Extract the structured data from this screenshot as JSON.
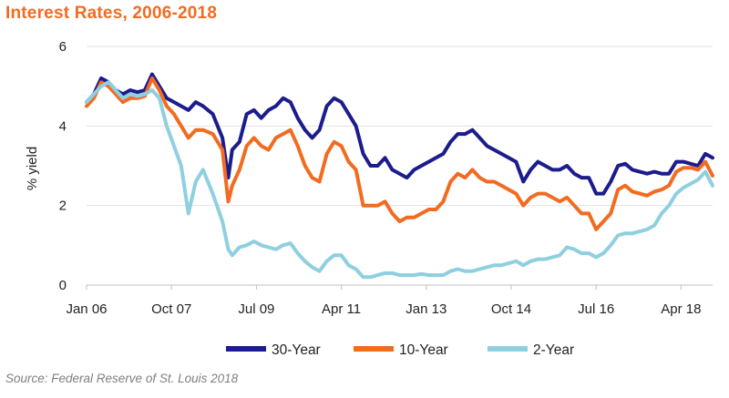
{
  "title": "Interest Rates, 2006-2018",
  "source": "Source: Federal Reserve of St. Louis 2018",
  "chart_data": {
    "type": "line",
    "title": "Interest Rates, 2006-2018",
    "xlabel": "",
    "ylabel": "% yield",
    "ylim": [
      0,
      6
    ],
    "yticks": [
      0,
      2,
      4,
      6
    ],
    "xlim": [
      2006.0,
      2018.9
    ],
    "xticks": [
      {
        "label": "Jan 06",
        "x": 2006.0
      },
      {
        "label": "Oct 07",
        "x": 2007.75
      },
      {
        "label": "Jul 09",
        "x": 2009.5
      },
      {
        "label": "Apr 11",
        "x": 2011.25
      },
      {
        "label": "Jan 13",
        "x": 2013.0
      },
      {
        "label": "Oct 14",
        "x": 2014.75
      },
      {
        "label": "Jul 16",
        "x": 2016.5
      },
      {
        "label": "Apr 18",
        "x": 2018.25
      }
    ],
    "series": [
      {
        "name": "30-Year",
        "color": "#1c1c8c",
        "x": [
          2006.0,
          2006.15,
          2006.3,
          2006.45,
          2006.6,
          2006.75,
          2006.9,
          2007.05,
          2007.2,
          2007.35,
          2007.5,
          2007.65,
          2007.8,
          2007.95,
          2008.1,
          2008.25,
          2008.4,
          2008.6,
          2008.8,
          2008.92,
          2009.0,
          2009.15,
          2009.3,
          2009.45,
          2009.6,
          2009.75,
          2009.9,
          2010.05,
          2010.2,
          2010.35,
          2010.5,
          2010.65,
          2010.8,
          2010.95,
          2011.1,
          2011.25,
          2011.4,
          2011.55,
          2011.7,
          2011.85,
          2012.0,
          2012.15,
          2012.3,
          2012.45,
          2012.6,
          2012.75,
          2012.9,
          2013.05,
          2013.2,
          2013.35,
          2013.5,
          2013.65,
          2013.8,
          2013.95,
          2014.1,
          2014.25,
          2014.4,
          2014.55,
          2014.7,
          2014.85,
          2015.0,
          2015.15,
          2015.3,
          2015.45,
          2015.6,
          2015.75,
          2015.9,
          2016.05,
          2016.2,
          2016.35,
          2016.5,
          2016.65,
          2016.8,
          2016.95,
          2017.1,
          2017.25,
          2017.4,
          2017.55,
          2017.7,
          2017.85,
          2018.0,
          2018.15,
          2018.3,
          2018.45,
          2018.6,
          2018.75,
          2018.9
        ],
        "values": [
          4.6,
          4.8,
          5.2,
          5.1,
          4.9,
          4.8,
          4.9,
          4.85,
          4.9,
          5.3,
          5.0,
          4.7,
          4.6,
          4.5,
          4.4,
          4.6,
          4.5,
          4.3,
          3.7,
          2.7,
          3.4,
          3.6,
          4.3,
          4.4,
          4.2,
          4.4,
          4.5,
          4.7,
          4.6,
          4.2,
          3.9,
          3.7,
          3.9,
          4.5,
          4.7,
          4.6,
          4.3,
          4.0,
          3.3,
          3.0,
          3.0,
          3.2,
          2.9,
          2.8,
          2.7,
          2.9,
          3.0,
          3.1,
          3.2,
          3.3,
          3.6,
          3.8,
          3.8,
          3.9,
          3.7,
          3.5,
          3.4,
          3.3,
          3.2,
          3.1,
          2.6,
          2.9,
          3.1,
          3.0,
          2.9,
          2.9,
          3.0,
          2.8,
          2.7,
          2.7,
          2.3,
          2.3,
          2.6,
          3.0,
          3.05,
          2.9,
          2.85,
          2.8,
          2.85,
          2.8,
          2.8,
          3.1,
          3.1,
          3.05,
          3.0,
          3.3,
          3.2
        ]
      },
      {
        "name": "10-Year",
        "color": "#f26b21",
        "x": [
          2006.0,
          2006.15,
          2006.3,
          2006.45,
          2006.6,
          2006.75,
          2006.9,
          2007.05,
          2007.2,
          2007.35,
          2007.5,
          2007.65,
          2007.8,
          2007.95,
          2008.1,
          2008.25,
          2008.4,
          2008.6,
          2008.8,
          2008.92,
          2009.0,
          2009.15,
          2009.3,
          2009.45,
          2009.6,
          2009.75,
          2009.9,
          2010.05,
          2010.2,
          2010.35,
          2010.5,
          2010.65,
          2010.8,
          2010.95,
          2011.1,
          2011.25,
          2011.4,
          2011.55,
          2011.7,
          2011.85,
          2012.0,
          2012.15,
          2012.3,
          2012.45,
          2012.6,
          2012.75,
          2012.9,
          2013.05,
          2013.2,
          2013.35,
          2013.5,
          2013.65,
          2013.8,
          2013.95,
          2014.1,
          2014.25,
          2014.4,
          2014.55,
          2014.7,
          2014.85,
          2015.0,
          2015.15,
          2015.3,
          2015.45,
          2015.6,
          2015.75,
          2015.9,
          2016.05,
          2016.2,
          2016.35,
          2016.5,
          2016.65,
          2016.8,
          2016.95,
          2017.1,
          2017.25,
          2017.4,
          2017.55,
          2017.7,
          2017.85,
          2018.0,
          2018.15,
          2018.3,
          2018.45,
          2018.6,
          2018.75,
          2018.9
        ],
        "values": [
          4.5,
          4.7,
          5.1,
          5.0,
          4.8,
          4.6,
          4.7,
          4.7,
          4.75,
          5.2,
          4.9,
          4.5,
          4.3,
          4.0,
          3.7,
          3.9,
          3.9,
          3.8,
          3.4,
          2.1,
          2.5,
          2.9,
          3.5,
          3.7,
          3.5,
          3.4,
          3.7,
          3.8,
          3.9,
          3.5,
          3.0,
          2.7,
          2.6,
          3.3,
          3.6,
          3.5,
          3.1,
          2.9,
          2.0,
          2.0,
          2.0,
          2.1,
          1.8,
          1.6,
          1.7,
          1.7,
          1.8,
          1.9,
          1.9,
          2.1,
          2.6,
          2.8,
          2.7,
          2.9,
          2.7,
          2.6,
          2.6,
          2.5,
          2.4,
          2.3,
          2.0,
          2.2,
          2.3,
          2.3,
          2.2,
          2.1,
          2.2,
          2.0,
          1.8,
          1.8,
          1.4,
          1.6,
          1.8,
          2.4,
          2.5,
          2.35,
          2.3,
          2.25,
          2.35,
          2.4,
          2.5,
          2.85,
          2.95,
          2.95,
          2.9,
          3.1,
          2.75
        ]
      },
      {
        "name": "2-Year",
        "color": "#8ecfe0",
        "x": [
          2006.0,
          2006.15,
          2006.3,
          2006.45,
          2006.6,
          2006.75,
          2006.9,
          2007.05,
          2007.2,
          2007.35,
          2007.5,
          2007.65,
          2007.8,
          2007.95,
          2008.1,
          2008.25,
          2008.4,
          2008.6,
          2008.8,
          2008.92,
          2009.0,
          2009.15,
          2009.3,
          2009.45,
          2009.6,
          2009.75,
          2009.9,
          2010.05,
          2010.2,
          2010.35,
          2010.5,
          2010.65,
          2010.8,
          2010.95,
          2011.1,
          2011.25,
          2011.4,
          2011.55,
          2011.7,
          2011.85,
          2012.0,
          2012.15,
          2012.3,
          2012.45,
          2012.6,
          2012.75,
          2012.9,
          2013.05,
          2013.2,
          2013.35,
          2013.5,
          2013.65,
          2013.8,
          2013.95,
          2014.1,
          2014.25,
          2014.4,
          2014.55,
          2014.7,
          2014.85,
          2015.0,
          2015.15,
          2015.3,
          2015.45,
          2015.6,
          2015.75,
          2015.9,
          2016.05,
          2016.2,
          2016.35,
          2016.5,
          2016.65,
          2016.8,
          2016.95,
          2017.1,
          2017.25,
          2017.4,
          2017.55,
          2017.7,
          2017.85,
          2018.0,
          2018.15,
          2018.3,
          2018.45,
          2018.6,
          2018.75,
          2018.9
        ],
        "values": [
          4.6,
          4.8,
          5.0,
          5.1,
          4.9,
          4.7,
          4.8,
          4.75,
          4.8,
          4.9,
          4.7,
          4.0,
          3.5,
          3.0,
          1.8,
          2.6,
          2.9,
          2.3,
          1.6,
          0.9,
          0.75,
          0.95,
          1.0,
          1.1,
          1.0,
          0.95,
          0.9,
          1.0,
          1.05,
          0.8,
          0.6,
          0.45,
          0.35,
          0.6,
          0.75,
          0.75,
          0.5,
          0.4,
          0.2,
          0.2,
          0.25,
          0.3,
          0.3,
          0.25,
          0.25,
          0.25,
          0.28,
          0.25,
          0.25,
          0.25,
          0.35,
          0.4,
          0.35,
          0.35,
          0.4,
          0.45,
          0.5,
          0.5,
          0.55,
          0.6,
          0.5,
          0.6,
          0.65,
          0.65,
          0.7,
          0.75,
          0.95,
          0.9,
          0.8,
          0.8,
          0.7,
          0.8,
          1.0,
          1.25,
          1.3,
          1.3,
          1.35,
          1.4,
          1.5,
          1.8,
          2.0,
          2.3,
          2.45,
          2.55,
          2.65,
          2.85,
          2.5
        ]
      }
    ],
    "legend": {
      "position": "bottom",
      "entries": [
        "30-Year",
        "10-Year",
        "2-Year"
      ]
    }
  }
}
